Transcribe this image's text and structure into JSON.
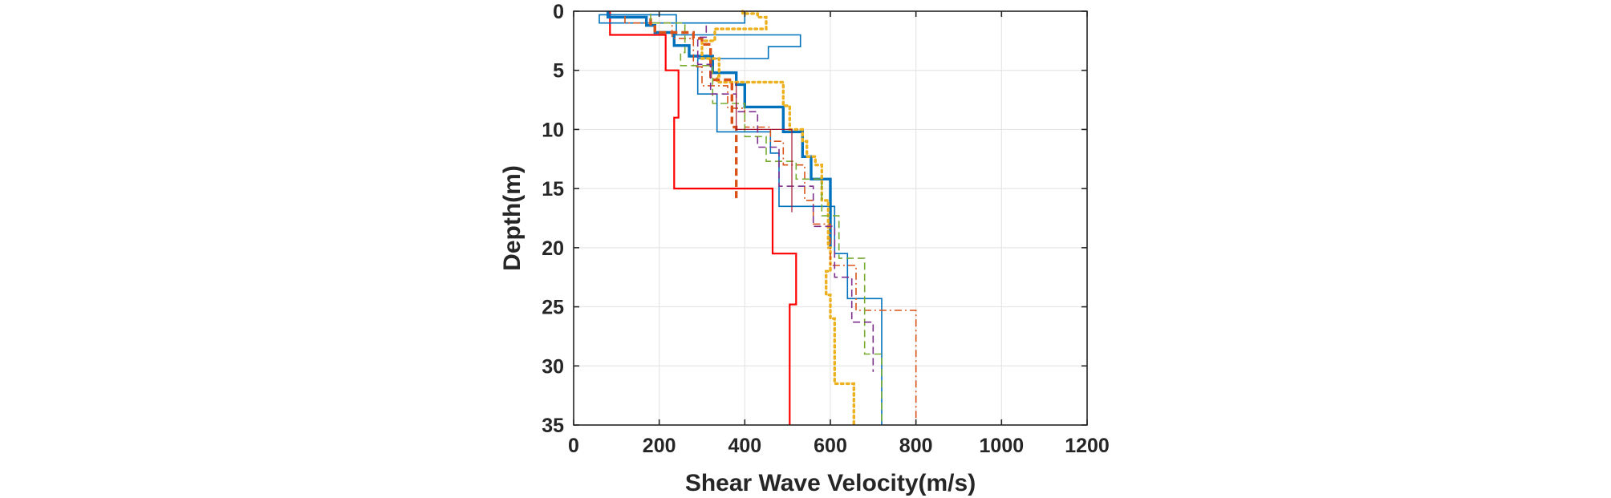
{
  "chart_data": {
    "type": "line",
    "title": "",
    "xlabel": "Shear Wave Velocity(m/s)",
    "ylabel": "Depth(m)",
    "xlim": [
      0,
      1200
    ],
    "ylim": [
      0,
      35
    ],
    "y_reversed": true,
    "grid": true,
    "x_ticks": [
      0,
      200,
      400,
      600,
      800,
      1000,
      1200
    ],
    "y_ticks": [
      0,
      5,
      10,
      15,
      20,
      25,
      30,
      35
    ],
    "series": [
      {
        "color": "#ff0000",
        "style": "solid",
        "weight": "medium",
        "points": [
          [
            85,
            0
          ],
          [
            85,
            2
          ],
          [
            215,
            2
          ],
          [
            215,
            5
          ],
          [
            245,
            5
          ],
          [
            245,
            9
          ],
          [
            235,
            9
          ],
          [
            235,
            15
          ],
          [
            465,
            15
          ],
          [
            465,
            20.5
          ],
          [
            520,
            20.5
          ],
          [
            520,
            24.8
          ],
          [
            505,
            24.8
          ],
          [
            505,
            35
          ]
        ]
      },
      {
        "color": "#0072bd",
        "style": "solid",
        "weight": "thin",
        "points": [
          [
            400,
            0
          ],
          [
            400,
            1
          ],
          [
            60,
            1
          ],
          [
            60,
            0.3
          ],
          [
            240,
            0.3
          ],
          [
            240,
            2
          ],
          [
            530,
            2
          ],
          [
            530,
            3
          ],
          [
            455,
            3
          ],
          [
            455,
            4
          ],
          [
            290,
            4
          ],
          [
            290,
            7
          ],
          [
            335,
            7
          ],
          [
            335,
            10.2
          ],
          [
            460,
            10.2
          ],
          [
            460,
            12
          ],
          [
            480,
            12
          ],
          [
            480,
            16.5
          ],
          [
            610,
            16.5
          ],
          [
            610,
            20.5
          ],
          [
            640,
            20.5
          ],
          [
            640,
            24.3
          ],
          [
            720,
            24.3
          ],
          [
            720,
            35
          ]
        ]
      },
      {
        "color": "#0072bd",
        "style": "solid",
        "weight": "thick",
        "points": [
          [
            80,
            0
          ],
          [
            80,
            0.5
          ],
          [
            170,
            0.5
          ],
          [
            170,
            1.2
          ],
          [
            190,
            1.2
          ],
          [
            190,
            1.8
          ],
          [
            235,
            1.8
          ],
          [
            235,
            2.9
          ],
          [
            270,
            2.9
          ],
          [
            270,
            3.8
          ],
          [
            325,
            3.8
          ],
          [
            325,
            5.2
          ],
          [
            380,
            5.2
          ],
          [
            380,
            6.2
          ],
          [
            400,
            6.2
          ],
          [
            400,
            8.1
          ],
          [
            490,
            8.1
          ],
          [
            490,
            10.2
          ],
          [
            535,
            10.2
          ],
          [
            535,
            12.3
          ],
          [
            555,
            12.3
          ],
          [
            555,
            14.2
          ],
          [
            600,
            14.2
          ],
          [
            600,
            20
          ]
        ]
      },
      {
        "color": "#edb120",
        "style": "dotted",
        "weight": "thick",
        "points": [
          [
            395,
            0
          ],
          [
            395,
            0.2
          ],
          [
            430,
            0.2
          ],
          [
            430,
            0.5
          ],
          [
            450,
            0.5
          ],
          [
            450,
            1.5
          ],
          [
            330,
            1.5
          ],
          [
            330,
            2.5
          ],
          [
            300,
            2.5
          ],
          [
            300,
            4
          ],
          [
            340,
            4
          ],
          [
            340,
            5.5
          ],
          [
            335,
            5.5
          ],
          [
            335,
            6
          ],
          [
            490,
            6
          ],
          [
            490,
            8
          ],
          [
            505,
            8
          ],
          [
            505,
            10
          ],
          [
            535,
            10
          ],
          [
            535,
            11
          ],
          [
            545,
            11
          ],
          [
            545,
            12.3
          ],
          [
            565,
            12.3
          ],
          [
            565,
            13
          ],
          [
            580,
            13
          ],
          [
            580,
            16
          ],
          [
            595,
            16
          ],
          [
            595,
            20
          ],
          [
            600,
            20
          ],
          [
            600,
            22
          ],
          [
            590,
            22
          ],
          [
            590,
            24
          ],
          [
            600,
            24
          ],
          [
            600,
            26
          ],
          [
            610,
            26
          ],
          [
            610,
            31.5
          ],
          [
            655,
            31.5
          ],
          [
            655,
            35
          ]
        ]
      },
      {
        "color": "#d95319",
        "style": "dashed",
        "weight": "thick",
        "points": [
          [
            180,
            0.6
          ],
          [
            180,
            1.3
          ],
          [
            190,
            1.3
          ],
          [
            190,
            1.8
          ],
          [
            280,
            1.8
          ],
          [
            280,
            2.3
          ],
          [
            300,
            2.3
          ],
          [
            300,
            2.8
          ],
          [
            320,
            2.8
          ],
          [
            320,
            5.8
          ],
          [
            370,
            5.8
          ],
          [
            370,
            9.8
          ],
          [
            380,
            9.8
          ],
          [
            380,
            16
          ]
        ]
      },
      {
        "color": "#d95319",
        "style": "dashdot",
        "weight": "thin",
        "points": [
          [
            120,
            0.4
          ],
          [
            120,
            1.0
          ],
          [
            230,
            1.0
          ],
          [
            230,
            2.3
          ],
          [
            280,
            2.3
          ],
          [
            280,
            4.7
          ],
          [
            300,
            4.7
          ],
          [
            300,
            6.3
          ],
          [
            360,
            6.3
          ],
          [
            360,
            8.2
          ],
          [
            400,
            8.2
          ],
          [
            400,
            9.8
          ],
          [
            460,
            9.8
          ],
          [
            460,
            11
          ],
          [
            490,
            11
          ],
          [
            490,
            13
          ],
          [
            540,
            13
          ],
          [
            540,
            16
          ],
          [
            560,
            16
          ],
          [
            560,
            18
          ],
          [
            600,
            18
          ],
          [
            600,
            21.5
          ],
          [
            660,
            21.5
          ],
          [
            660,
            25.3
          ],
          [
            800,
            25.3
          ],
          [
            800,
            35
          ]
        ]
      },
      {
        "color": "#77ac30",
        "style": "dashed",
        "weight": "thin",
        "points": [
          [
            180,
            0.2
          ],
          [
            180,
            1.0
          ],
          [
            260,
            1.0
          ],
          [
            260,
            3.5
          ],
          [
            250,
            3.5
          ],
          [
            250,
            4.6
          ],
          [
            325,
            4.6
          ],
          [
            325,
            7.8
          ],
          [
            400,
            7.8
          ],
          [
            400,
            10.6
          ],
          [
            450,
            10.6
          ],
          [
            450,
            12.7
          ],
          [
            520,
            12.7
          ],
          [
            520,
            14.2
          ],
          [
            580,
            14.2
          ],
          [
            580,
            17.3
          ],
          [
            620,
            17.3
          ],
          [
            620,
            20.9
          ],
          [
            680,
            20.9
          ],
          [
            680,
            29
          ],
          [
            720,
            29
          ],
          [
            720,
            35
          ]
        ]
      },
      {
        "color": "#7e2f8e",
        "style": "dashed",
        "weight": "thin",
        "points": [
          [
            310,
            1.2
          ],
          [
            310,
            2.2
          ],
          [
            290,
            2.2
          ],
          [
            290,
            4.5
          ],
          [
            320,
            4.5
          ],
          [
            320,
            7
          ],
          [
            380,
            7
          ],
          [
            380,
            8.5
          ],
          [
            430,
            8.5
          ],
          [
            430,
            11.5
          ],
          [
            480,
            11.5
          ],
          [
            480,
            14.8
          ],
          [
            560,
            14.8
          ],
          [
            560,
            18.2
          ],
          [
            610,
            18.2
          ],
          [
            610,
            22.5
          ],
          [
            650,
            22.5
          ],
          [
            650,
            26.3
          ],
          [
            700,
            26.3
          ],
          [
            700,
            30.5
          ]
        ]
      },
      {
        "color": "#a2142f",
        "style": "solid",
        "weight": "hair",
        "points": [
          [
            380,
            6
          ],
          [
            380,
            10
          ],
          [
            510,
            10
          ],
          [
            510,
            17
          ]
        ]
      }
    ]
  }
}
